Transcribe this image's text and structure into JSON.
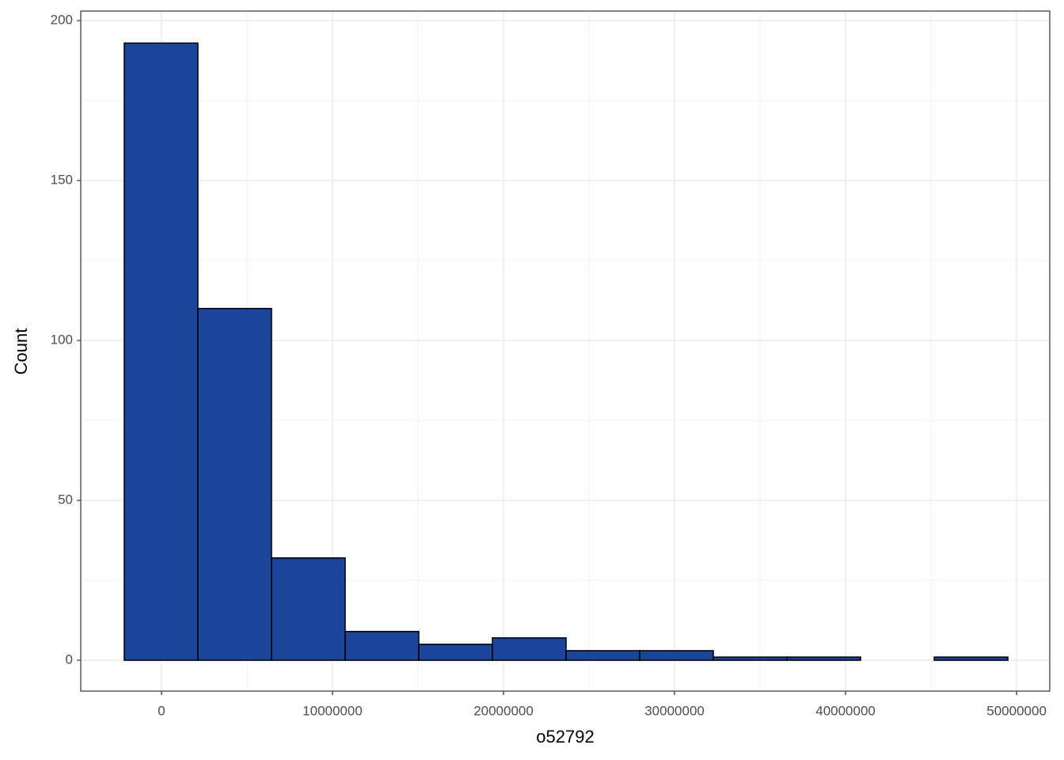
{
  "chart_data": {
    "type": "histogram",
    "x_label": "o52792",
    "y_label": "Count",
    "bins": [
      -2176000,
      2130000,
      6435000,
      10741000,
      15046000,
      19352000,
      23657000,
      27963000,
      32269000,
      36574000,
      40880000,
      45185000,
      49491000
    ],
    "values": [
      193,
      110,
      32,
      9,
      5,
      7,
      3,
      3,
      1,
      1,
      0,
      1
    ],
    "color": "#1a4599",
    "xlim": [
      -4720000,
      51940000
    ],
    "xticks": [
      0,
      10000000,
      20000000,
      30000000,
      40000000,
      50000000
    ],
    "ylim": [
      -9.65,
      203
    ],
    "yticks": [
      0,
      50,
      100,
      150,
      200
    ],
    "grid": true
  }
}
